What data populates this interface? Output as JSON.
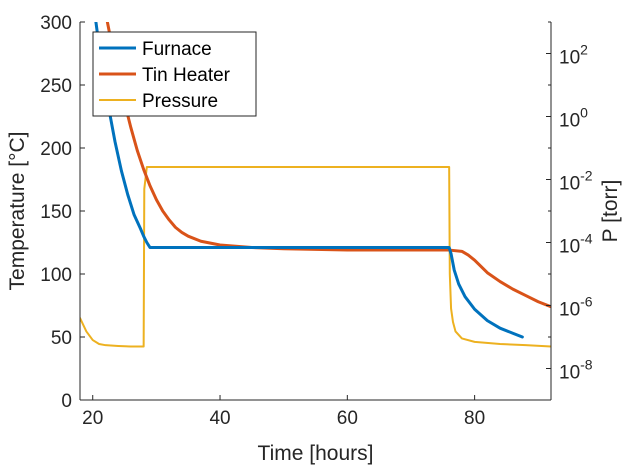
{
  "chart_data": {
    "type": "line",
    "title": "",
    "xlabel": "Time [hours]",
    "ylabel_left": "Temperature [°C]",
    "ylabel_right": "P [torr]",
    "xlim": [
      18,
      92
    ],
    "ylim_left": [
      0,
      300
    ],
    "ylim_right_log10": [
      -9,
      3
    ],
    "right_axis_scale": "log",
    "grid": false,
    "legend_position": "top-left",
    "x_ticks": [
      20,
      40,
      60,
      80
    ],
    "y_left_ticks": [
      0,
      50,
      100,
      150,
      200,
      250,
      300
    ],
    "y_right_ticks": [
      {
        "base": "10",
        "exp": "-8",
        "value": 1e-08
      },
      {
        "base": "10",
        "exp": "-6",
        "value": 1e-06
      },
      {
        "base": "10",
        "exp": "-4",
        "value": 0.0001
      },
      {
        "base": "10",
        "exp": "-2",
        "value": 0.01
      },
      {
        "base": "10",
        "exp": "0",
        "value": 1
      },
      {
        "base": "10",
        "exp": "2",
        "value": 100
      }
    ],
    "series": [
      {
        "name": "Furnace",
        "axis": "left",
        "color": "#0072BD",
        "x": [
          20.5,
          21.5,
          22.5,
          23.5,
          24.5,
          25.5,
          26.5,
          27.5,
          28.0,
          28.5,
          29,
          30,
          35,
          40,
          45,
          50,
          55,
          60,
          65,
          70,
          75,
          76,
          76.3,
          76.8,
          77.5,
          78.5,
          80,
          82,
          84,
          86,
          87.5
        ],
        "y": [
          300,
          262,
          232,
          205,
          182,
          163,
          147,
          136,
          130,
          125,
          121,
          121,
          121,
          121,
          121,
          121,
          121,
          121,
          121,
          121,
          121,
          121,
          116,
          103,
          92,
          82,
          72,
          63,
          57,
          53,
          50
        ]
      },
      {
        "name": "Tin Heater",
        "axis": "left",
        "color": "#D95319",
        "x": [
          22.3,
          23,
          24,
          25,
          26,
          27,
          28,
          29,
          30,
          31,
          32,
          33,
          34,
          35,
          37,
          40,
          45,
          50,
          60,
          70,
          76,
          78,
          79,
          80,
          81,
          82,
          84,
          86,
          88,
          90,
          92
        ],
        "y": [
          300,
          282,
          258,
          236,
          216,
          198,
          183,
          170,
          159,
          150,
          143,
          137,
          133,
          130,
          126,
          123,
          121,
          120,
          119,
          119,
          119,
          118,
          115,
          111,
          106,
          101,
          94,
          88,
          83,
          78,
          74
        ]
      },
      {
        "name": "Pressure",
        "axis": "right",
        "color": "#EDB120",
        "x": [
          18,
          19,
          20,
          21,
          22,
          24,
          26,
          28.0,
          28.1,
          28.5,
          40,
          50,
          60,
          70,
          76.0,
          76.1,
          76.3,
          76.6,
          77,
          78,
          80,
          84,
          88,
          92
        ],
        "y": [
          4e-07,
          1.5e-07,
          8e-08,
          6e-08,
          5.5e-08,
          5.2e-08,
          5e-08,
          5e-08,
          0.005,
          0.025,
          0.025,
          0.025,
          0.025,
          0.025,
          0.025,
          1e-05,
          8e-07,
          3e-07,
          1.5e-07,
          9e-08,
          7e-08,
          6e-08,
          5.5e-08,
          5e-08
        ]
      }
    ]
  }
}
